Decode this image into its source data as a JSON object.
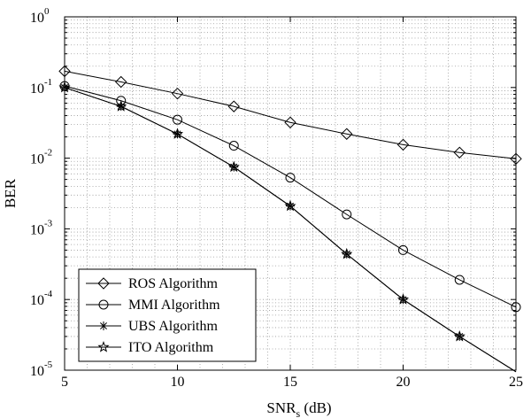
{
  "chart_data": {
    "type": "line",
    "title": "",
    "xlabel": {
      "main": "SNR",
      "subscript": "s",
      "suffix": " (dB)"
    },
    "ylabel": "BER",
    "xlim": [
      5,
      25
    ],
    "ylim": [
      1e-05,
      1
    ],
    "yscale": "log",
    "grid": true,
    "legend_position": "bottom-left",
    "x_ticks": [
      "5",
      "10",
      "15",
      "20",
      "25"
    ],
    "y_ticks": [
      {
        "base": "10",
        "exp": "0"
      },
      {
        "base": "10",
        "exp": "-1"
      },
      {
        "base": "10",
        "exp": "-2"
      },
      {
        "base": "10",
        "exp": "-3"
      },
      {
        "base": "10",
        "exp": "-4"
      },
      {
        "base": "10",
        "exp": "-5"
      }
    ],
    "series": [
      {
        "name": "ROS Algorithm",
        "marker": "diamond",
        "color": "#000000",
        "x": [
          5,
          7.5,
          10,
          12.5,
          15,
          17.5,
          20,
          22.5,
          25
        ],
        "y": [
          0.17,
          0.12,
          0.082,
          0.054,
          0.032,
          0.022,
          0.0155,
          0.012,
          0.0098
        ]
      },
      {
        "name": "MMI Algorithm",
        "marker": "circle",
        "color": "#000000",
        "x": [
          5,
          7.5,
          10,
          12.5,
          15,
          17.5,
          20,
          22.5,
          25
        ],
        "y": [
          0.105,
          0.065,
          0.035,
          0.015,
          0.0053,
          0.0016,
          0.0005,
          0.00019,
          7.8e-05
        ]
      },
      {
        "name": "UBS Algorithm",
        "marker": "asterisk",
        "color": "#000000",
        "x": [
          5,
          7.5,
          10,
          12.5,
          15,
          17.5,
          20,
          22.5,
          25
        ],
        "y": [
          0.1,
          0.054,
          0.022,
          0.0075,
          0.0021,
          0.00044,
          0.0001,
          3e-05,
          9.5e-06
        ]
      },
      {
        "name": "ITO Algorithm",
        "marker": "star",
        "color": "#000000",
        "x": [
          5,
          7.5,
          10,
          12.5,
          15,
          17.5,
          20,
          22.5,
          25
        ],
        "y": [
          0.1,
          0.054,
          0.022,
          0.0075,
          0.0021,
          0.00044,
          0.0001,
          3e-05,
          9.5e-06
        ]
      }
    ]
  }
}
